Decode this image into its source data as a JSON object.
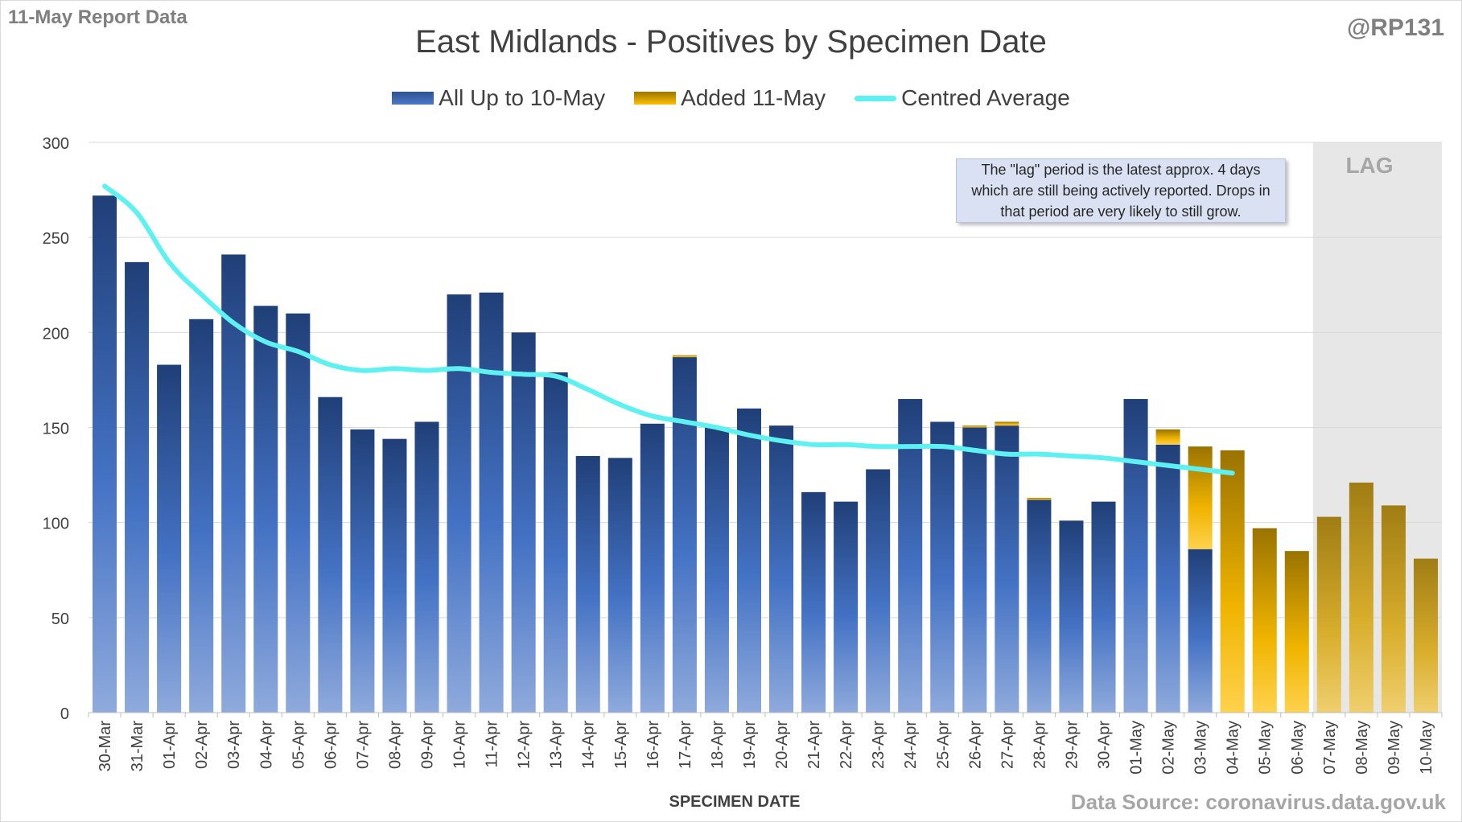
{
  "corner_left": "11-May Report Data",
  "corner_right": "@RP131",
  "source": "Data Source: coronavirus.data.gov.uk",
  "note": "The \"lag\" period is the latest approx. 4 days which are still being actively reported. Drops in that period are very likely to still grow.",
  "lag_label": "LAG",
  "colors": {
    "existing": "#2f528f",
    "added": "#d4a106",
    "average": "#5ef1f1",
    "lag_shade": "#e7e7e7"
  },
  "chart_data": {
    "type": "bar",
    "title": "East Midlands - Positives by Specimen Date",
    "xlabel": "SPECIMEN DATE",
    "ylabel": "",
    "ylim": [
      0,
      300
    ],
    "yticks": [
      0,
      50,
      100,
      150,
      200,
      250,
      300
    ],
    "grid": true,
    "legend_position": "top",
    "lag_categories": [
      "07-May",
      "08-May",
      "09-May",
      "10-May"
    ],
    "categories": [
      "30-Mar",
      "31-Mar",
      "01-Apr",
      "02-Apr",
      "03-Apr",
      "04-Apr",
      "05-Apr",
      "06-Apr",
      "07-Apr",
      "08-Apr",
      "09-Apr",
      "10-Apr",
      "11-Apr",
      "12-Apr",
      "13-Apr",
      "14-Apr",
      "15-Apr",
      "16-Apr",
      "17-Apr",
      "18-Apr",
      "19-Apr",
      "20-Apr",
      "21-Apr",
      "22-Apr",
      "23-Apr",
      "24-Apr",
      "25-Apr",
      "26-Apr",
      "27-Apr",
      "28-Apr",
      "29-Apr",
      "30-Apr",
      "01-May",
      "02-May",
      "03-May",
      "04-May",
      "05-May",
      "06-May",
      "07-May",
      "08-May",
      "09-May",
      "10-May"
    ],
    "series": [
      {
        "name": "All Up to 10-May",
        "kind": "bar",
        "values": [
          272,
          237,
          183,
          207,
          241,
          214,
          210,
          166,
          149,
          144,
          153,
          220,
          221,
          200,
          179,
          135,
          134,
          152,
          187,
          150,
          160,
          151,
          116,
          111,
          128,
          165,
          153,
          150,
          151,
          112,
          101,
          111,
          165,
          141,
          86,
          0,
          0,
          0,
          0,
          0,
          0,
          0
        ]
      },
      {
        "name": "Added 11-May",
        "kind": "bar",
        "values": [
          0,
          0,
          0,
          0,
          0,
          0,
          0,
          0,
          0,
          0,
          0,
          0,
          0,
          0,
          0,
          0,
          0,
          0,
          1,
          0,
          0,
          0,
          0,
          0,
          0,
          0,
          0,
          1,
          2,
          1,
          0,
          0,
          0,
          8,
          54,
          138,
          97,
          85,
          103,
          121,
          109,
          81
        ]
      },
      {
        "name": "Centred Average",
        "kind": "line",
        "values": [
          277,
          263,
          237,
          220,
          205,
          195,
          190,
          183,
          180,
          181,
          180,
          181,
          179,
          178,
          177,
          170,
          162,
          156,
          153,
          150,
          146,
          143,
          141,
          141,
          140,
          140,
          140,
          138,
          136,
          136,
          135,
          134,
          132,
          130,
          128,
          126,
          null,
          null,
          null,
          null,
          null,
          null
        ]
      }
    ]
  }
}
